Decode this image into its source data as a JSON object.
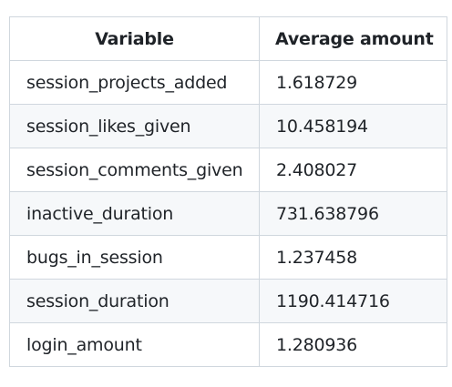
{
  "table": {
    "headers": {
      "variable": "Variable",
      "average_amount": "Average amount"
    },
    "rows": [
      {
        "variable": "session_projects_added",
        "average_amount": "1.618729"
      },
      {
        "variable": "session_likes_given",
        "average_amount": "10.458194"
      },
      {
        "variable": "session_comments_given",
        "average_amount": "2.408027"
      },
      {
        "variable": "inactive_duration",
        "average_amount": "731.638796"
      },
      {
        "variable": "bugs_in_session",
        "average_amount": "1.237458"
      },
      {
        "variable": "session_duration",
        "average_amount": "1190.414716"
      },
      {
        "variable": "login_amount",
        "average_amount": "1.280936"
      }
    ]
  }
}
